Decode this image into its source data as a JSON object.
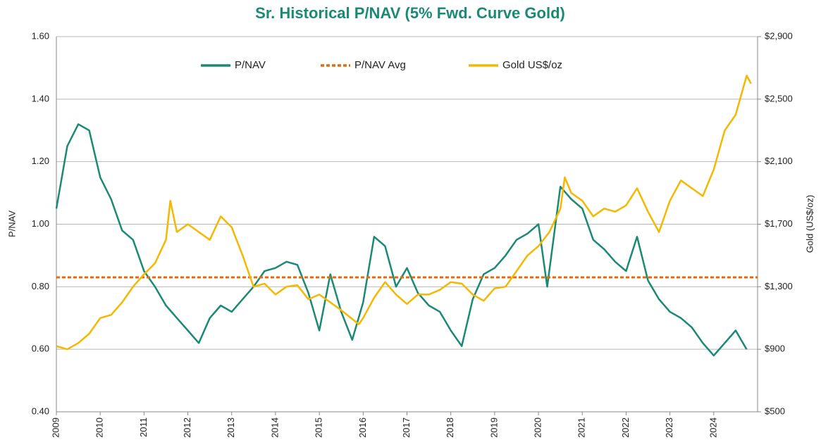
{
  "chart_data": {
    "type": "line",
    "title": "Sr. Historical P/NAV (5% Fwd. Curve Gold)",
    "ylabel": "P/NAV",
    "y2label": "Gold (US$/oz)",
    "xlim": [
      2009,
      2025
    ],
    "xticks": [
      2009,
      2010,
      2011,
      2012,
      2013,
      2014,
      2015,
      2016,
      2017,
      2018,
      2019,
      2020,
      2021,
      2022,
      2023,
      2024
    ],
    "ylim": [
      0.4,
      1.6
    ],
    "yticks": [
      {
        "value": 0.4,
        "label": "0.40"
      },
      {
        "value": 0.6,
        "label": "0.60"
      },
      {
        "value": 0.8,
        "label": "0.80"
      },
      {
        "value": 1.0,
        "label": "1.00"
      },
      {
        "value": 1.2,
        "label": "1.20"
      },
      {
        "value": 1.4,
        "label": "1.40"
      },
      {
        "value": 1.6,
        "label": "1.60"
      }
    ],
    "y2lim": [
      500,
      2900
    ],
    "y2ticks": [
      {
        "value": 500,
        "label": "$500"
      },
      {
        "value": 900,
        "label": "$900"
      },
      {
        "value": 1300,
        "label": "$1,300"
      },
      {
        "value": 1700,
        "label": "$1,700"
      },
      {
        "value": 2100,
        "label": "$2,100"
      },
      {
        "value": 2500,
        "label": "$2,500"
      },
      {
        "value": 2900,
        "label": "$2,900"
      }
    ],
    "grid": true,
    "legend": "top",
    "series": [
      {
        "name": "P/NAV",
        "color": "#1a8a74",
        "style": "solid",
        "x": [
          2009,
          2009.25,
          2009.5,
          2009.75,
          2010,
          2010.25,
          2010.5,
          2010.75,
          2011,
          2011.25,
          2011.5,
          2011.75,
          2012,
          2012.25,
          2012.5,
          2012.75,
          2013,
          2013.25,
          2013.5,
          2013.75,
          2014,
          2014.25,
          2014.5,
          2014.75,
          2015,
          2015.25,
          2015.5,
          2015.75,
          2016,
          2016.25,
          2016.5,
          2016.75,
          2017,
          2017.25,
          2017.5,
          2017.75,
          2018,
          2018.25,
          2018.5,
          2018.75,
          2019,
          2019.25,
          2019.5,
          2019.75,
          2020,
          2020.2,
          2020.5,
          2020.75,
          2021,
          2021.25,
          2021.5,
          2021.75,
          2022,
          2022.25,
          2022.5,
          2022.75,
          2023,
          2023.25,
          2023.5,
          2023.75,
          2024,
          2024.25,
          2024.5,
          2024.75
        ],
        "values": [
          1.05,
          1.25,
          1.32,
          1.3,
          1.15,
          1.08,
          0.98,
          0.95,
          0.85,
          0.8,
          0.74,
          0.7,
          0.66,
          0.62,
          0.7,
          0.74,
          0.72,
          0.76,
          0.8,
          0.85,
          0.86,
          0.88,
          0.87,
          0.78,
          0.66,
          0.84,
          0.72,
          0.63,
          0.75,
          0.96,
          0.93,
          0.8,
          0.86,
          0.78,
          0.74,
          0.72,
          0.66,
          0.61,
          0.76,
          0.84,
          0.86,
          0.9,
          0.95,
          0.97,
          1.0,
          0.8,
          1.12,
          1.08,
          1.05,
          0.95,
          0.92,
          0.88,
          0.85,
          0.96,
          0.82,
          0.76,
          0.72,
          0.7,
          0.67,
          0.62,
          0.58,
          0.62,
          0.66,
          0.6
        ]
      },
      {
        "name": "P/NAV Avg",
        "color": "#e36c09",
        "style": "dashed",
        "x": [
          2009,
          2025
        ],
        "values": [
          0.83,
          0.83
        ]
      },
      {
        "name": "Gold US$/oz",
        "color": "#f5b800",
        "style": "solid",
        "axis": "y2",
        "x": [
          2009,
          2009.25,
          2009.5,
          2009.75,
          2010,
          2010.25,
          2010.5,
          2010.75,
          2011,
          2011.25,
          2011.5,
          2011.6,
          2011.75,
          2012,
          2012.25,
          2012.5,
          2012.75,
          2013,
          2013.25,
          2013.5,
          2013.75,
          2014,
          2014.25,
          2014.5,
          2014.75,
          2015,
          2015.25,
          2015.5,
          2015.9,
          2016,
          2016.25,
          2016.5,
          2016.75,
          2017,
          2017.25,
          2017.5,
          2017.75,
          2018,
          2018.25,
          2018.5,
          2018.75,
          2019,
          2019.25,
          2019.5,
          2019.75,
          2020,
          2020.25,
          2020.5,
          2020.6,
          2020.75,
          2021,
          2021.25,
          2021.5,
          2021.75,
          2022,
          2022.25,
          2022.5,
          2022.75,
          2023,
          2023.25,
          2023.5,
          2023.75,
          2024,
          2024.25,
          2024.5,
          2024.75,
          2024.85
        ],
        "values": [
          920,
          900,
          940,
          1000,
          1100,
          1120,
          1200,
          1300,
          1380,
          1450,
          1600,
          1850,
          1650,
          1700,
          1650,
          1600,
          1750,
          1680,
          1500,
          1300,
          1320,
          1250,
          1300,
          1310,
          1220,
          1250,
          1200,
          1150,
          1060,
          1100,
          1230,
          1330,
          1250,
          1190,
          1250,
          1250,
          1280,
          1330,
          1320,
          1250,
          1210,
          1290,
          1300,
          1400,
          1500,
          1560,
          1650,
          1800,
          2000,
          1900,
          1850,
          1750,
          1800,
          1780,
          1820,
          1930,
          1780,
          1650,
          1850,
          1980,
          1930,
          1880,
          2050,
          2300,
          2400,
          2650,
          2600
        ]
      }
    ]
  }
}
